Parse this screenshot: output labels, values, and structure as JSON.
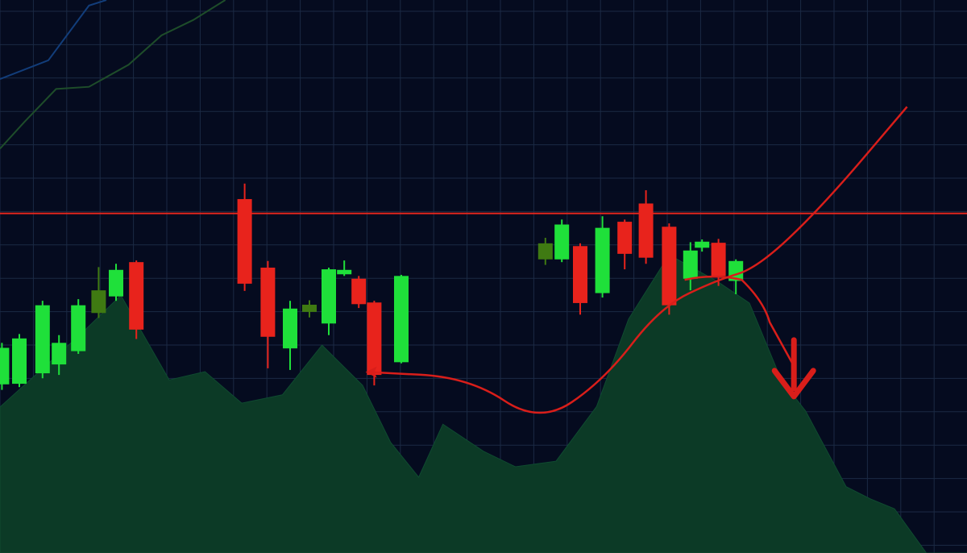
{
  "theme": {
    "background": "#050b1f",
    "grid": "#1b2a44",
    "up": "#1fe03a",
    "up_dim": "#3f7a12",
    "down": "#e8231c",
    "area_fill": "#0c3a26",
    "area_edge": "#0f4a30",
    "resistance": "#e1261d",
    "annotation": "#d91e1a",
    "ma_blue": "#123d7a",
    "ma_green": "#1e4d2a"
  },
  "chart_data": {
    "type": "candlestick",
    "title": "",
    "xlabel": "",
    "ylabel": "",
    "grid": true,
    "legend": "none",
    "ylim": [
      0,
      100
    ],
    "xlim": [
      0,
      100
    ],
    "resistance_level": 61.4,
    "candles": [
      {
        "x": 0.2,
        "open": 30.5,
        "close": 37.1,
        "high": 38.0,
        "low": 29.5,
        "dir": "up"
      },
      {
        "x": 2.0,
        "open": 30.6,
        "close": 38.8,
        "high": 39.6,
        "low": 30.0,
        "dir": "up"
      },
      {
        "x": 4.4,
        "open": 32.5,
        "close": 44.8,
        "high": 45.6,
        "low": 31.6,
        "dir": "up"
      },
      {
        "x": 6.1,
        "open": 34.1,
        "close": 38.0,
        "high": 39.4,
        "low": 32.2,
        "dir": "up"
      },
      {
        "x": 8.1,
        "open": 36.5,
        "close": 44.8,
        "high": 45.9,
        "low": 36.0,
        "dir": "up"
      },
      {
        "x": 10.2,
        "open": 43.4,
        "close": 47.5,
        "high": 51.7,
        "low": 42.5,
        "dir": "up_dim"
      },
      {
        "x": 12.0,
        "open": 46.4,
        "close": 51.2,
        "high": 52.3,
        "low": 45.6,
        "dir": "up"
      },
      {
        "x": 14.1,
        "open": 52.6,
        "close": 40.4,
        "high": 52.9,
        "low": 38.7,
        "dir": "down"
      },
      {
        "x": 25.3,
        "open": 64.0,
        "close": 48.7,
        "high": 66.8,
        "low": 47.4,
        "dir": "down"
      },
      {
        "x": 27.7,
        "open": 51.6,
        "close": 39.1,
        "high": 52.8,
        "low": 33.4,
        "dir": "down"
      },
      {
        "x": 30.0,
        "open": 37.0,
        "close": 44.2,
        "high": 45.6,
        "low": 33.1,
        "dir": "up"
      },
      {
        "x": 32.0,
        "open": 43.6,
        "close": 44.9,
        "high": 45.7,
        "low": 42.6,
        "dir": "up_dim"
      },
      {
        "x": 34.0,
        "open": 41.5,
        "close": 51.3,
        "high": 51.6,
        "low": 39.4,
        "dir": "up"
      },
      {
        "x": 35.6,
        "open": 50.4,
        "close": 51.2,
        "high": 52.9,
        "low": 50.1,
        "dir": "up"
      },
      {
        "x": 37.1,
        "open": 49.6,
        "close": 45.0,
        "high": 50.1,
        "low": 44.3,
        "dir": "down"
      },
      {
        "x": 38.7,
        "open": 45.3,
        "close": 32.2,
        "high": 45.6,
        "low": 30.3,
        "dir": "down"
      },
      {
        "x": 41.5,
        "open": 34.5,
        "close": 50.1,
        "high": 50.3,
        "low": 34.3,
        "dir": "up"
      },
      {
        "x": 56.4,
        "open": 53.1,
        "close": 56.0,
        "high": 57.0,
        "low": 52.1,
        "dir": "up_dim"
      },
      {
        "x": 58.1,
        "open": 53.1,
        "close": 59.4,
        "high": 60.3,
        "low": 52.6,
        "dir": "up"
      },
      {
        "x": 60.0,
        "open": 55.5,
        "close": 45.2,
        "high": 56.0,
        "low": 43.1,
        "dir": "down"
      },
      {
        "x": 62.3,
        "open": 47.0,
        "close": 58.8,
        "high": 60.9,
        "low": 46.2,
        "dir": "up"
      },
      {
        "x": 64.6,
        "open": 59.9,
        "close": 54.1,
        "high": 60.3,
        "low": 51.3,
        "dir": "down"
      },
      {
        "x": 66.8,
        "open": 63.2,
        "close": 53.4,
        "high": 65.6,
        "low": 52.3,
        "dir": "down"
      },
      {
        "x": 69.2,
        "open": 59.0,
        "close": 44.8,
        "high": 59.6,
        "low": 43.1,
        "dir": "down"
      },
      {
        "x": 71.4,
        "open": 54.7,
        "close": 49.6,
        "high": 56.2,
        "low": 47.5,
        "dir": "up"
      },
      {
        "x": 72.6,
        "open": 56.3,
        "close": 55.2,
        "high": 56.7,
        "low": 54.5,
        "dir": "up"
      },
      {
        "x": 74.3,
        "open": 56.1,
        "close": 50.1,
        "high": 56.8,
        "low": 48.3,
        "dir": "down"
      },
      {
        "x": 76.1,
        "open": 52.8,
        "close": 49.2,
        "high": 53.1,
        "low": 46.8,
        "dir": "up"
      }
    ],
    "area_series": [
      [
        0,
        26.4
      ],
      [
        8.3,
        39.5
      ],
      [
        12.5,
        46.6
      ],
      [
        17.5,
        31.3
      ],
      [
        21.2,
        32.8
      ],
      [
        25.0,
        27.1
      ],
      [
        29.2,
        28.6
      ],
      [
        33.3,
        37.6
      ],
      [
        37.5,
        30.3
      ],
      [
        40.4,
        20.0
      ],
      [
        43.3,
        13.7
      ],
      [
        45.8,
        23.3
      ],
      [
        50.0,
        18.4
      ],
      [
        53.3,
        15.6
      ],
      [
        57.5,
        16.6
      ],
      [
        61.7,
        26.5
      ],
      [
        65.0,
        42.3
      ],
      [
        69.2,
        53.9
      ],
      [
        74.2,
        49.1
      ],
      [
        77.5,
        45.2
      ],
      [
        80.8,
        31.3
      ],
      [
        83.3,
        25.7
      ],
      [
        87.5,
        12.0
      ],
      [
        90.0,
        9.8
      ],
      [
        92.5,
        8.0
      ],
      [
        95.8,
        0
      ],
      [
        100,
        0
      ],
      [
        100,
        0
      ]
    ],
    "ma_lines": [
      {
        "color_key": "ma_blue",
        "points": [
          [
            0,
            85.7
          ],
          [
            5.0,
            89.1
          ],
          [
            9.2,
            99.0
          ],
          [
            11.0,
            100
          ]
        ]
      },
      {
        "color_key": "ma_green",
        "points": [
          [
            0,
            73.1
          ],
          [
            2.5,
            77.9
          ],
          [
            5.8,
            83.9
          ],
          [
            9.2,
            84.3
          ],
          [
            13.3,
            88.3
          ],
          [
            16.7,
            93.6
          ],
          [
            20.0,
            96.4
          ],
          [
            23.3,
            100
          ]
        ]
      }
    ],
    "annotations": {
      "projection_curve": [
        [
          38.3,
          32.7
        ],
        [
          48.5,
          31.8
        ],
        [
          55.8,
          23.3
        ],
        [
          62.5,
          31.3
        ],
        [
          68.3,
          44.5
        ],
        [
          74.2,
          49.4
        ],
        [
          78.3,
          51.5
        ],
        [
          85.0,
          62.6
        ],
        [
          93.8,
          80.7
        ]
      ],
      "breakdown_path": [
        [
          70.8,
          49.4
        ],
        [
          76.7,
          49.4
        ],
        [
          79.6,
          41.7
        ],
        [
          82.1,
          33.8
        ]
      ],
      "breakdown_arrow_tip": [
        82.1,
        28.3
      ]
    }
  }
}
